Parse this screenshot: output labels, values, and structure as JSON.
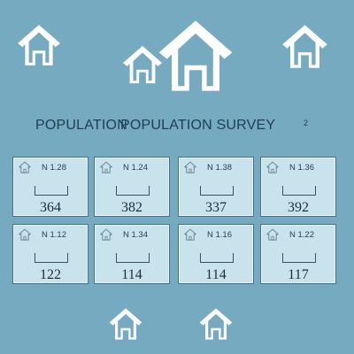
{
  "title_parts": [
    "POPULATION",
    "POPULATION SURVEY"
  ],
  "title_superscript": "2",
  "colors": {
    "background": "#76aac0",
    "card_fill": "#c9e3ec",
    "card_border": "#47708a",
    "house_fill": "#ffffff",
    "text": "#1f3c57"
  },
  "icons": {
    "house": "house-icon"
  },
  "cards": [
    {
      "code": "N 1.28",
      "value": "364"
    },
    {
      "code": "N 1.24",
      "value": "382"
    },
    {
      "code": "N 1.38",
      "value": "337"
    },
    {
      "code": "N 1.36",
      "value": "392"
    },
    {
      "code": "N 1.12",
      "value": "122"
    },
    {
      "code": "N 1.34",
      "value": "114"
    },
    {
      "code": "N 1.16",
      "value": "114"
    },
    {
      "code": "N 1.22",
      "value": "117"
    }
  ]
}
